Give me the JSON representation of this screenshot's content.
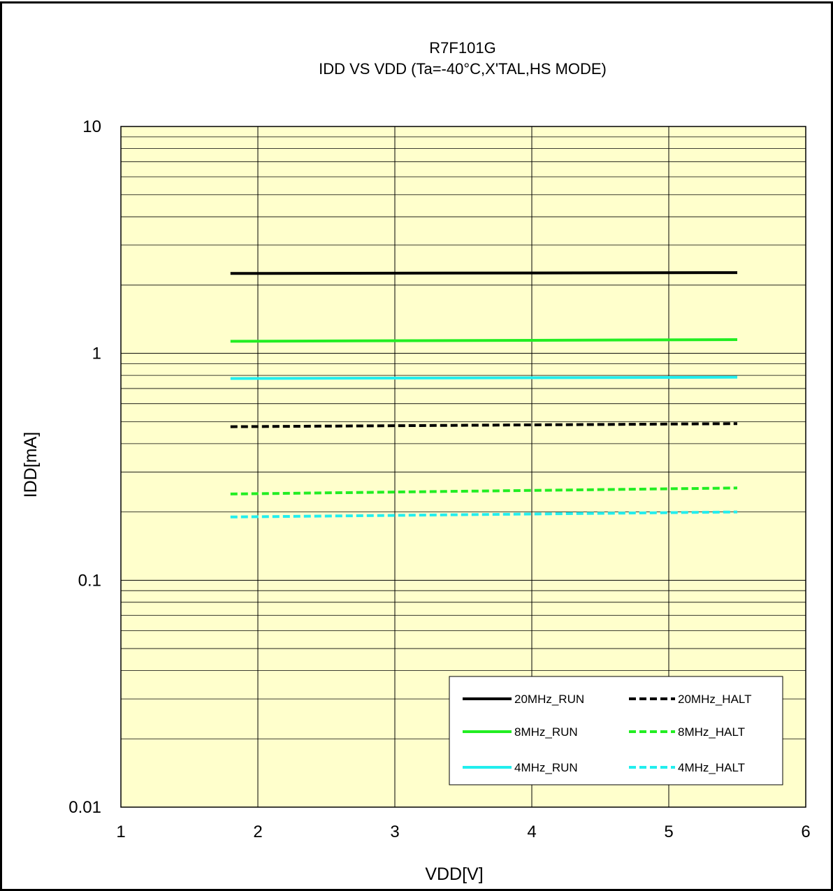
{
  "chart_data": {
    "type": "line",
    "title": "R7F101G",
    "subtitle": "IDD VS VDD (Ta=-40°C,X'TAL,HS MODE)",
    "xlabel": "VDD[V]",
    "ylabel": "IDD[mA]",
    "xlim": [
      1,
      6
    ],
    "ylim": [
      0.01,
      10
    ],
    "yscale": "log",
    "x_ticks": [
      "1",
      "2",
      "3",
      "4",
      "5",
      "6"
    ],
    "y_ticks": [
      "0.01",
      "0.1",
      "1",
      "10"
    ],
    "plot_background": "#ffffcc",
    "grid": true,
    "legend_position": "bottom-right",
    "x": [
      1.8,
      5.5
    ],
    "series": [
      {
        "name": "20MHz_RUN",
        "values": [
          2.25,
          2.27
        ],
        "color": "#000000",
        "dash": false
      },
      {
        "name": "20MHz_HALT",
        "values": [
          0.475,
          0.49
        ],
        "color": "#000000",
        "dash": true
      },
      {
        "name": "8MHz_RUN",
        "values": [
          1.13,
          1.15
        ],
        "color": "#22ee22",
        "dash": false
      },
      {
        "name": "8MHz_HALT",
        "values": [
          0.24,
          0.255
        ],
        "color": "#22ee22",
        "dash": true
      },
      {
        "name": "4MHz_RUN",
        "values": [
          0.775,
          0.785
        ],
        "color": "#22eeee",
        "dash": false
      },
      {
        "name": "4MHz_HALT",
        "values": [
          0.19,
          0.2
        ],
        "color": "#22eeee",
        "dash": true
      }
    ]
  }
}
